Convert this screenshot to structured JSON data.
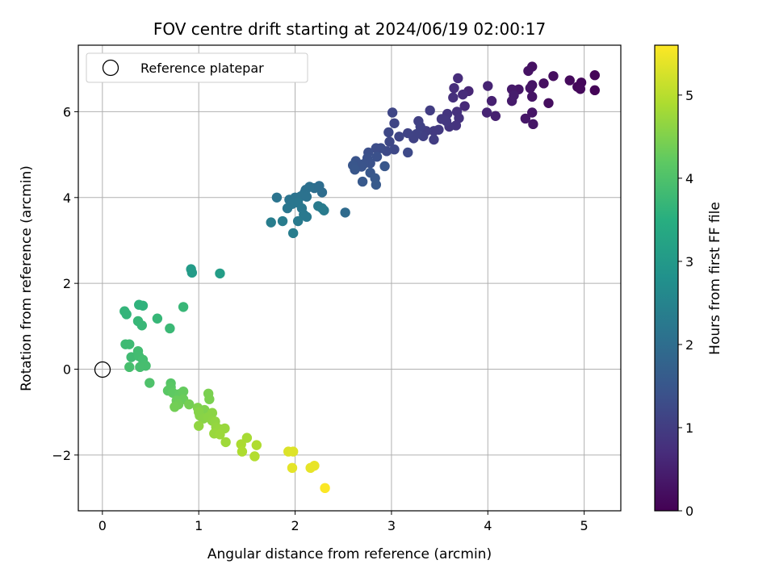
{
  "chart_data": {
    "type": "scatter",
    "title": "FOV centre drift starting at 2024/06/19 02:00:17",
    "xlabel": "Angular distance from reference (arcmin)",
    "ylabel": "Rotation from reference (arcmin)",
    "xlim": [
      -0.25,
      5.38
    ],
    "ylim": [
      -3.3,
      7.55
    ],
    "x_ticks": [
      0,
      1,
      2,
      3,
      4,
      5
    ],
    "y_ticks": [
      -2,
      0,
      2,
      4,
      6
    ],
    "grid": true,
    "legend": {
      "placement": "top-left",
      "entries": [
        "Reference platepar"
      ]
    },
    "reference_point": {
      "x": 0,
      "y": 0,
      "label": "Reference platepar"
    },
    "colorbar": {
      "label": "Hours from first FF file",
      "range": [
        0,
        5.6
      ],
      "ticks": [
        0,
        1,
        2,
        3,
        4,
        5
      ],
      "colormap": "viridis"
    },
    "points": [
      [
        5.11,
        6.85,
        0.05
      ],
      [
        5.11,
        6.5,
        0.05
      ],
      [
        4.97,
        6.68,
        0.1
      ],
      [
        4.93,
        6.58,
        0.1
      ],
      [
        4.96,
        6.53,
        0.12
      ],
      [
        4.85,
        6.73,
        0.15
      ],
      [
        4.68,
        6.83,
        0.2
      ],
      [
        4.63,
        6.2,
        0.2
      ],
      [
        4.58,
        6.66,
        0.22
      ],
      [
        4.46,
        7.05,
        0.25
      ],
      [
        4.42,
        6.95,
        0.27
      ],
      [
        4.46,
        6.62,
        0.28
      ],
      [
        4.44,
        6.55,
        0.3
      ],
      [
        4.46,
        6.35,
        0.3
      ],
      [
        4.46,
        5.98,
        0.32
      ],
      [
        4.47,
        5.71,
        0.33
      ],
      [
        4.39,
        5.84,
        0.35
      ],
      [
        4.32,
        6.52,
        0.35
      ],
      [
        4.25,
        6.52,
        0.4
      ],
      [
        4.25,
        6.25,
        0.42
      ],
      [
        4.27,
        6.38,
        0.45
      ],
      [
        4.08,
        5.9,
        0.5
      ],
      [
        4.04,
        6.25,
        0.5
      ],
      [
        4.0,
        6.6,
        0.55
      ],
      [
        3.99,
        5.98,
        0.55
      ],
      [
        3.8,
        6.48,
        0.6
      ],
      [
        3.76,
        6.13,
        0.65
      ],
      [
        3.74,
        6.4,
        0.68
      ],
      [
        3.69,
        6.78,
        0.7
      ],
      [
        3.65,
        6.55,
        0.72
      ],
      [
        3.64,
        6.33,
        0.75
      ],
      [
        3.68,
        6.0,
        0.78
      ],
      [
        3.7,
        5.85,
        0.8
      ],
      [
        3.67,
        5.68,
        0.82
      ],
      [
        3.6,
        5.65,
        0.85
      ],
      [
        3.58,
        5.95,
        0.85
      ],
      [
        3.52,
        5.83,
        0.9
      ],
      [
        3.57,
        5.78,
        0.9
      ],
      [
        3.49,
        5.58,
        0.95
      ],
      [
        3.44,
        5.55,
        0.95
      ],
      [
        3.4,
        6.03,
        1.0
      ],
      [
        3.44,
        5.35,
        1.0
      ],
      [
        3.36,
        5.55,
        1.02
      ],
      [
        3.33,
        5.43,
        1.05
      ],
      [
        3.28,
        5.78,
        1.05
      ],
      [
        3.3,
        5.65,
        1.08
      ],
      [
        3.26,
        5.48,
        1.1
      ],
      [
        3.23,
        5.38,
        1.1
      ],
      [
        3.17,
        5.5,
        1.12
      ],
      [
        3.08,
        5.42,
        1.15
      ],
      [
        3.03,
        5.73,
        1.15
      ],
      [
        3.01,
        5.98,
        1.18
      ],
      [
        2.97,
        5.52,
        1.2
      ],
      [
        2.98,
        5.3,
        1.2
      ],
      [
        3.03,
        5.12,
        1.22
      ],
      [
        3.17,
        5.05,
        1.25
      ],
      [
        2.95,
        5.08,
        1.25
      ],
      [
        2.89,
        5.15,
        1.28
      ],
      [
        2.84,
        5.15,
        1.3
      ],
      [
        2.76,
        5.05,
        1.35
      ],
      [
        2.75,
        4.92,
        1.38
      ],
      [
        2.85,
        4.95,
        1.38
      ],
      [
        2.78,
        4.8,
        1.4
      ],
      [
        2.71,
        4.78,
        1.42
      ],
      [
        2.69,
        4.72,
        1.45
      ],
      [
        2.63,
        4.85,
        1.45
      ],
      [
        2.6,
        4.75,
        1.48
      ],
      [
        2.62,
        4.65,
        1.5
      ],
      [
        2.93,
        4.73,
        1.5
      ],
      [
        2.78,
        4.58,
        1.52
      ],
      [
        2.7,
        4.37,
        1.55
      ],
      [
        2.83,
        4.45,
        1.55
      ],
      [
        2.84,
        4.3,
        1.58
      ],
      [
        2.52,
        3.65,
        1.95
      ],
      [
        2.25,
        4.27,
        2.0
      ],
      [
        2.28,
        4.12,
        2.0
      ],
      [
        2.2,
        4.22,
        2.02
      ],
      [
        2.15,
        4.25,
        2.05
      ],
      [
        2.11,
        4.18,
        2.05
      ],
      [
        2.1,
        4.12,
        2.08
      ],
      [
        2.06,
        4.03,
        2.1
      ],
      [
        2.12,
        4.02,
        2.1
      ],
      [
        2.0,
        4.0,
        2.12
      ],
      [
        1.94,
        3.95,
        2.15
      ],
      [
        1.81,
        4.0,
        2.15
      ],
      [
        1.97,
        3.85,
        2.18
      ],
      [
        1.92,
        3.75,
        2.2
      ],
      [
        2.03,
        3.88,
        2.2
      ],
      [
        2.07,
        3.75,
        2.22
      ],
      [
        2.09,
        3.6,
        2.25
      ],
      [
        2.12,
        3.55,
        2.25
      ],
      [
        2.03,
        3.45,
        2.28
      ],
      [
        2.24,
        3.8,
        2.28
      ],
      [
        2.28,
        3.75,
        2.3
      ],
      [
        2.3,
        3.7,
        2.3
      ],
      [
        1.87,
        3.45,
        2.32
      ],
      [
        1.75,
        3.42,
        2.35
      ],
      [
        1.98,
        3.17,
        2.35
      ],
      [
        0.92,
        2.33,
        3.05
      ],
      [
        0.93,
        2.25,
        3.05
      ],
      [
        1.22,
        2.23,
        3.1
      ],
      [
        0.38,
        1.5,
        3.6
      ],
      [
        0.42,
        1.48,
        3.6
      ],
      [
        0.23,
        1.35,
        3.65
      ],
      [
        0.25,
        1.28,
        3.65
      ],
      [
        0.57,
        1.18,
        3.7
      ],
      [
        0.37,
        1.12,
        3.7
      ],
      [
        0.41,
        1.02,
        3.72
      ],
      [
        0.84,
        1.45,
        3.72
      ],
      [
        0.7,
        0.95,
        3.75
      ],
      [
        0.24,
        0.58,
        3.8
      ],
      [
        0.28,
        0.58,
        3.8
      ],
      [
        0.3,
        0.28,
        3.82
      ],
      [
        0.37,
        0.42,
        3.85
      ],
      [
        0.38,
        0.3,
        3.85
      ],
      [
        0.42,
        0.22,
        3.88
      ],
      [
        0.45,
        0.08,
        3.9
      ],
      [
        0.39,
        0.05,
        3.9
      ],
      [
        0.28,
        0.05,
        3.92
      ],
      [
        0.49,
        -0.32,
        4.0
      ],
      [
        0.71,
        -0.33,
        4.1
      ],
      [
        0.71,
        -0.42,
        4.15
      ],
      [
        0.68,
        -0.5,
        4.15
      ],
      [
        0.73,
        -0.55,
        4.2
      ],
      [
        0.8,
        -0.58,
        4.22
      ],
      [
        0.84,
        -0.52,
        4.25
      ],
      [
        0.84,
        -0.7,
        4.3
      ],
      [
        0.77,
        -0.73,
        4.3
      ],
      [
        0.79,
        -0.82,
        4.35
      ],
      [
        0.75,
        -0.88,
        4.38
      ],
      [
        0.9,
        -0.82,
        4.4
      ],
      [
        1.1,
        -0.57,
        4.45
      ],
      [
        1.11,
        -0.7,
        4.45
      ],
      [
        0.99,
        -0.9,
        4.5
      ],
      [
        1.06,
        -0.95,
        4.5
      ],
      [
        1.0,
        -1.0,
        4.55
      ],
      [
        1.01,
        -1.08,
        4.55
      ],
      [
        1.05,
        -1.15,
        4.58
      ],
      [
        1.14,
        -1.02,
        4.6
      ],
      [
        1.1,
        -1.12,
        4.6
      ],
      [
        1.14,
        -1.2,
        4.62
      ],
      [
        1.17,
        -1.22,
        4.65
      ],
      [
        1.0,
        -1.32,
        4.65
      ],
      [
        1.18,
        -1.35,
        4.68
      ],
      [
        1.22,
        -1.4,
        4.7
      ],
      [
        1.27,
        -1.38,
        4.72
      ],
      [
        1.16,
        -1.5,
        4.72
      ],
      [
        1.22,
        -1.52,
        4.75
      ],
      [
        1.28,
        -1.7,
        4.78
      ],
      [
        1.5,
        -1.6,
        4.85
      ],
      [
        1.44,
        -1.75,
        4.88
      ],
      [
        1.45,
        -1.92,
        4.9
      ],
      [
        1.6,
        -1.77,
        4.92
      ],
      [
        1.58,
        -2.03,
        4.95
      ],
      [
        1.93,
        -1.92,
        5.3
      ],
      [
        1.98,
        -1.92,
        5.32
      ],
      [
        1.97,
        -2.3,
        5.38
      ],
      [
        2.16,
        -2.3,
        5.4
      ],
      [
        2.2,
        -2.25,
        5.42
      ],
      [
        2.31,
        -2.77,
        5.58
      ]
    ]
  }
}
